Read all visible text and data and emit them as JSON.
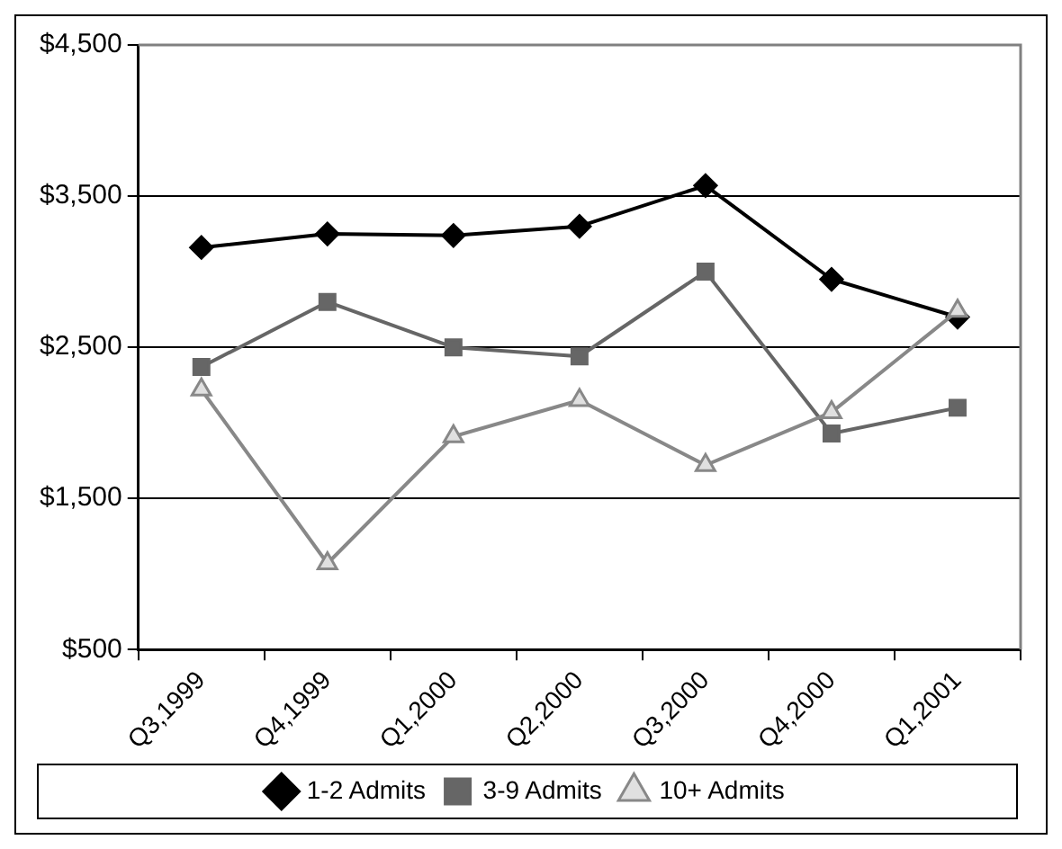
{
  "chart_data": {
    "type": "line",
    "categories": [
      "Q3,1999",
      "Q4,1999",
      "Q1,2000",
      "Q2,2000",
      "Q3,2000",
      "Q4,2000",
      "Q1,2001"
    ],
    "series": [
      {
        "name": "1-2 Admits",
        "color": "#000000",
        "marker": "diamond",
        "values": [
          3160,
          3250,
          3240,
          3300,
          3570,
          2950,
          2700
        ]
      },
      {
        "name": "3-9 Admits",
        "color": "#666666",
        "marker": "square",
        "values": [
          2370,
          2800,
          2500,
          2440,
          3000,
          1930,
          2100
        ]
      },
      {
        "name": "10+ Admits",
        "color": "#888888",
        "marker": "triangle",
        "values": [
          2220,
          1070,
          1910,
          2150,
          1720,
          2070,
          2740
        ]
      }
    ],
    "ylim": [
      500,
      4500
    ],
    "yticks": [
      {
        "value": 500,
        "label": "$500"
      },
      {
        "value": 1500,
        "label": "$1,500"
      },
      {
        "value": 2500,
        "label": "$2,500"
      },
      {
        "value": 3500,
        "label": "$3,500"
      },
      {
        "value": 4500,
        "label": "$4,500"
      }
    ],
    "grid": "y",
    "legend": "bottom",
    "line_style": "solid"
  }
}
